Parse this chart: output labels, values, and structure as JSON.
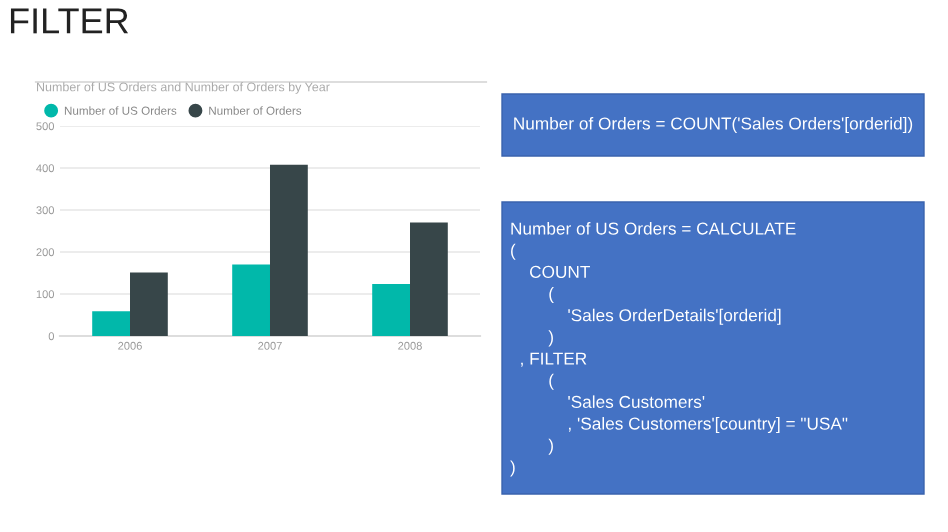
{
  "chart_data": [
    {
      "type": "other",
      "title": "FILTER",
      "annotations": [
        "Number of Orders = COUNT('Sales Orders'[orderid])",
        "Number of US Orders = CALCULATE\n(\n    COUNT\n        (\n            'Sales OrderDetails'[orderid]\n        )\n  , FILTER\n        (\n            'Sales Customers'\n            , 'Sales Customers'[country] = \"USA\"\n        )\n)"
      ]
    },
    {
      "type": "bar",
      "title": "Number of US Orders and Number of Orders by Year",
      "categories": [
        "2006",
        "2007",
        "2008"
      ],
      "series": [
        {
          "name": "Number of US Orders",
          "color": "#01b8aa",
          "values": [
            59,
            170,
            124
          ]
        },
        {
          "name": "Number of Orders",
          "color": "#374649",
          "values": [
            151,
            408,
            270
          ]
        }
      ],
      "ylim": [
        0,
        500
      ],
      "yticks": [
        0,
        100,
        200,
        300,
        400,
        500
      ],
      "grid": "y",
      "legend": "top left"
    }
  ]
}
